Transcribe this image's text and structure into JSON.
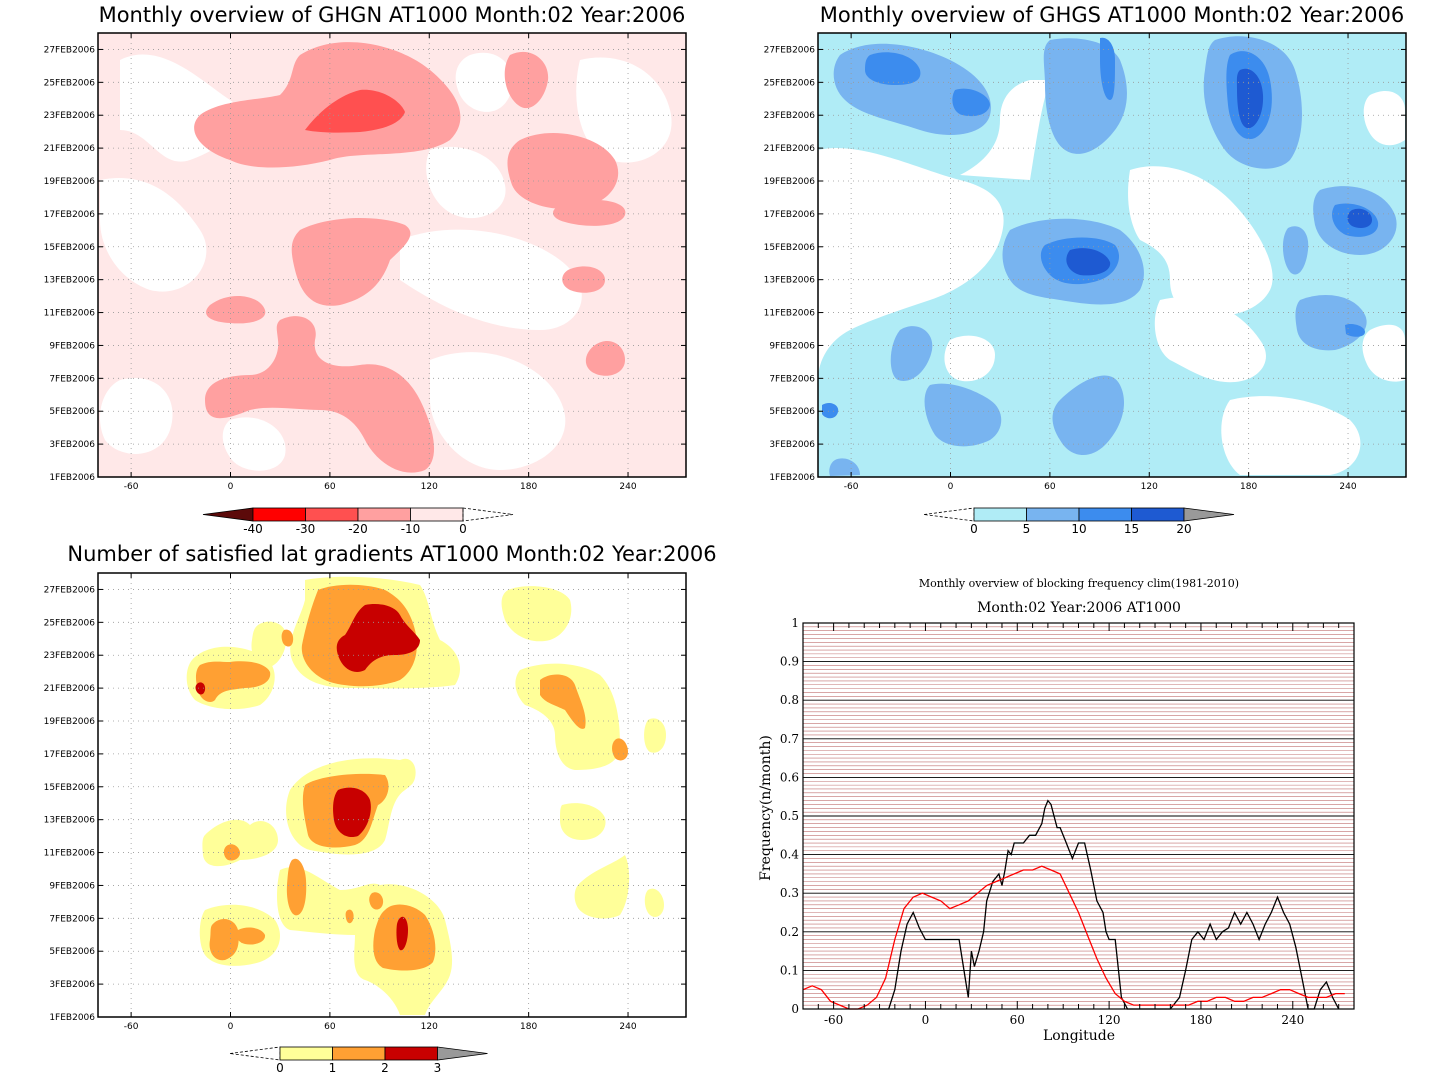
{
  "colors": {
    "red_scale": [
      "#5c0a0a",
      "#ff0000",
      "#ff5050",
      "#ffa0a0",
      "#ffe8e8",
      "#ffffff"
    ],
    "blue_scale": [
      "#ffffff",
      "#b0ecf6",
      "#78b4f0",
      "#3c8cee",
      "#1e5ad2",
      "#999999"
    ],
    "yellow_scale": [
      "#ffffff",
      "#ffff99",
      "#ffa033",
      "#c80000",
      "#999999"
    ],
    "clim_line": "#ff0000",
    "year_line": "#000000",
    "hgrid_line": "#c07070"
  },
  "chart_data": [
    {
      "type": "heatmap",
      "title": "Monthly overview of GHGN AT1000 Month:02 Year:2006",
      "xlabel": "",
      "ylabel": "",
      "x_ticks": [
        "-60",
        "0",
        "60",
        "120",
        "180",
        "240"
      ],
      "xlim": [
        -80,
        275
      ],
      "y_ticks": [
        "1FEB2006",
        "3FEB2006",
        "5FEB2006",
        "7FEB2006",
        "9FEB2006",
        "11FEB2006",
        "13FEB2006",
        "15FEB2006",
        "17FEB2006",
        "19FEB2006",
        "21FEB2006",
        "23FEB2006",
        "25FEB2006",
        "27FEB2006"
      ],
      "ylim": [
        1,
        28
      ],
      "colorbar_ticks": [
        "-40",
        "-30",
        "-20",
        "-10",
        "0"
      ],
      "colorbar_levels": [
        -40,
        -30,
        -20,
        -10,
        0
      ],
      "grid": "dotted"
    },
    {
      "type": "heatmap",
      "title": "Monthly overview of GHGS AT1000 Month:02 Year:2006",
      "xlabel": "",
      "ylabel": "",
      "x_ticks": [
        "-60",
        "0",
        "60",
        "120",
        "180",
        "240"
      ],
      "xlim": [
        -80,
        275
      ],
      "y_ticks": [
        "1FEB2006",
        "3FEB2006",
        "5FEB2006",
        "7FEB2006",
        "9FEB2006",
        "11FEB2006",
        "13FEB2006",
        "15FEB2006",
        "17FEB2006",
        "19FEB2006",
        "21FEB2006",
        "23FEB2006",
        "25FEB2006",
        "27FEB2006"
      ],
      "ylim": [
        1,
        28
      ],
      "colorbar_ticks": [
        "0",
        "5",
        "10",
        "15",
        "20"
      ],
      "colorbar_levels": [
        0,
        5,
        10,
        15,
        20
      ],
      "grid": "dotted"
    },
    {
      "type": "heatmap",
      "title": "Number of satisfied lat gradients AT1000 Month:02 Year:2006",
      "xlabel": "",
      "ylabel": "",
      "x_ticks": [
        "-60",
        "0",
        "60",
        "120",
        "180",
        "240"
      ],
      "xlim": [
        -80,
        275
      ],
      "y_ticks": [
        "1FEB2006",
        "3FEB2006",
        "5FEB2006",
        "7FEB2006",
        "9FEB2006",
        "11FEB2006",
        "13FEB2006",
        "15FEB2006",
        "17FEB2006",
        "19FEB2006",
        "21FEB2006",
        "23FEB2006",
        "25FEB2006",
        "27FEB2006"
      ],
      "ylim": [
        1,
        28
      ],
      "colorbar_ticks": [
        "0",
        "1",
        "2",
        "3"
      ],
      "colorbar_levels": [
        0,
        1,
        2,
        3
      ],
      "grid": "dotted"
    },
    {
      "type": "line",
      "title": "Monthly overview of blocking frequency clim(1981-2010)",
      "subtitle": "Month:02 Year:2006  AT1000",
      "xlabel": "Longitude",
      "ylabel": "Frequency(n/month)",
      "xlim": [
        -80,
        280
      ],
      "ylim": [
        0,
        1
      ],
      "x_ticks": [
        "-60",
        "0",
        "60",
        "120",
        "180",
        "240"
      ],
      "y_ticks": [
        "0",
        "0.1",
        "0.2",
        "0.3",
        "0.4",
        "0.5",
        "0.6",
        "0.7",
        "0.8",
        "0.9",
        "1"
      ],
      "grid": "horizontal",
      "series": [
        {
          "color": "#000000",
          "x": [
            -30,
            -24,
            -20,
            -16,
            -12,
            -8,
            -4,
            0,
            4,
            10,
            16,
            22,
            26,
            28,
            30,
            32,
            35,
            38,
            40,
            44,
            48,
            50,
            52,
            54,
            56,
            58,
            60,
            64,
            68,
            72,
            76,
            78,
            80,
            82,
            84,
            86,
            88,
            92,
            96,
            100,
            104,
            108,
            112,
            116,
            118,
            120,
            124,
            128,
            132,
            136,
            140,
            150,
            160,
            166,
            170,
            174,
            178,
            182,
            186,
            190,
            194,
            198,
            202,
            206,
            210,
            214,
            218,
            222,
            226,
            230,
            234,
            238,
            242,
            246,
            250,
            254,
            258,
            262,
            266,
            270
          ],
          "y": [
            0,
            0,
            0.05,
            0.15,
            0.22,
            0.25,
            0.21,
            0.18,
            0.18,
            0.18,
            0.18,
            0.18,
            0.08,
            0.03,
            0.15,
            0.11,
            0.15,
            0.2,
            0.28,
            0.33,
            0.35,
            0.32,
            0.36,
            0.41,
            0.4,
            0.43,
            0.43,
            0.43,
            0.45,
            0.45,
            0.48,
            0.52,
            0.54,
            0.53,
            0.5,
            0.47,
            0.47,
            0.43,
            0.39,
            0.43,
            0.43,
            0.36,
            0.28,
            0.25,
            0.2,
            0.18,
            0.18,
            0.03,
            0,
            0,
            0,
            0,
            0,
            0.03,
            0.1,
            0.18,
            0.2,
            0.18,
            0.22,
            0.18,
            0.2,
            0.21,
            0.25,
            0.22,
            0.25,
            0.22,
            0.18,
            0.22,
            0.25,
            0.29,
            0.25,
            0.22,
            0.16,
            0.08,
            0,
            0,
            0.05,
            0.07,
            0.03,
            0
          ],
          "name": ""
        },
        {
          "color": "#ff0000",
          "x": [
            -80,
            -74,
            -68,
            -62,
            -56,
            -50,
            -44,
            -38,
            -32,
            -26,
            -20,
            -14,
            -8,
            -2,
            4,
            10,
            16,
            22,
            28,
            34,
            40,
            46,
            52,
            58,
            64,
            70,
            76,
            82,
            88,
            94,
            100,
            106,
            112,
            118,
            124,
            130,
            136,
            142,
            148,
            154,
            160,
            166,
            172,
            178,
            184,
            190,
            196,
            202,
            208,
            214,
            220,
            226,
            232,
            238,
            244,
            250,
            256,
            262,
            268,
            274
          ],
          "y": [
            0.05,
            0.06,
            0.05,
            0.02,
            0.01,
            0.0,
            0.0,
            0.01,
            0.03,
            0.08,
            0.18,
            0.26,
            0.29,
            0.3,
            0.29,
            0.28,
            0.26,
            0.27,
            0.28,
            0.3,
            0.32,
            0.33,
            0.34,
            0.35,
            0.36,
            0.36,
            0.37,
            0.36,
            0.35,
            0.3,
            0.25,
            0.19,
            0.13,
            0.08,
            0.04,
            0.02,
            0.01,
            0.01,
            0.01,
            0.01,
            0.01,
            0.01,
            0.01,
            0.02,
            0.02,
            0.03,
            0.03,
            0.02,
            0.02,
            0.03,
            0.03,
            0.04,
            0.05,
            0.05,
            0.04,
            0.03,
            0.03,
            0.03,
            0.04,
            0.04
          ],
          "name": ""
        }
      ]
    }
  ]
}
